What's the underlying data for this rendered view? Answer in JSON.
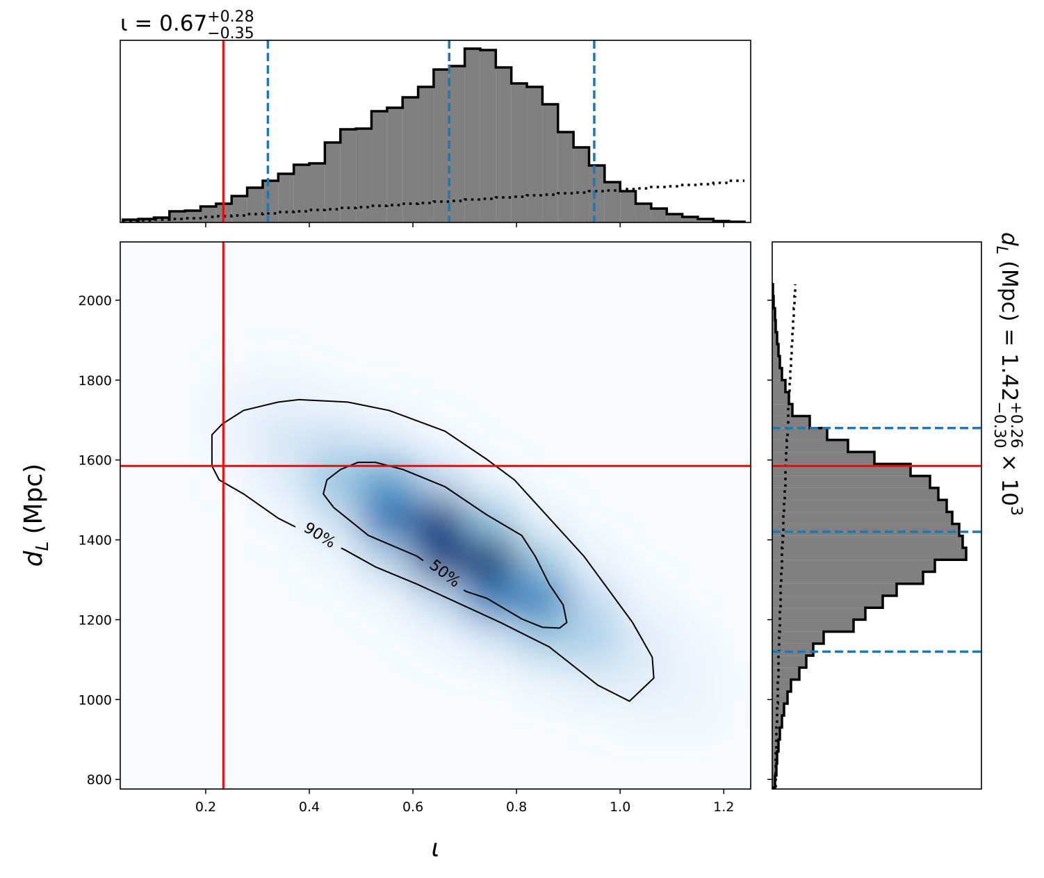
{
  "chart_data": [
    {
      "type": "histogram",
      "orientation": "vertical",
      "title": {
        "main": "ι = 0.67",
        "sup": "+0.28",
        "sub": "−0.35"
      },
      "bins": [
        0.04,
        0.07,
        0.1,
        0.13,
        0.16,
        0.19,
        0.22,
        0.25,
        0.28,
        0.31,
        0.34,
        0.37,
        0.4,
        0.43,
        0.46,
        0.49,
        0.52,
        0.55,
        0.58,
        0.61,
        0.64,
        0.67,
        0.7,
        0.73,
        0.76,
        0.79,
        0.82,
        0.85,
        0.88,
        0.91,
        0.94,
        0.97,
        1,
        1.03,
        1.06,
        1.09,
        1.12,
        1.15,
        1.18,
        1.21,
        1.24
      ],
      "series": [
        {
          "color": "#808080",
          "style": "filled",
          "values": [
            4,
            5,
            7,
            16,
            17,
            23,
            27,
            38,
            50,
            60,
            70,
            83,
            85,
            115,
            134,
            135,
            160,
            165,
            180,
            195,
            220,
            225,
            250,
            248,
            223,
            200,
            195,
            170,
            130,
            108,
            82,
            58,
            45,
            27,
            20,
            12,
            8,
            5,
            2,
            1
          ]
        },
        {
          "color": "#000000",
          "style": "dotted",
          "values": [
            2,
            3,
            4,
            5,
            6,
            8,
            9,
            10,
            12,
            13,
            15,
            16,
            18,
            19,
            21,
            22,
            24,
            25,
            27,
            28,
            30,
            31,
            33,
            34,
            36,
            37,
            39,
            40,
            42,
            43,
            45,
            46,
            48,
            49,
            51,
            52,
            54,
            55,
            57,
            60
          ]
        }
      ],
      "xlim": [
        0.035,
        1.252
      ],
      "ylim": [
        0,
        262
      ],
      "xticks": [
        0.2,
        0.4,
        0.6,
        0.8,
        {
          "value": 1,
          "label": "1.0"
        },
        1.2
      ],
      "injection": {
        "x": 0.234,
        "color": "#ff0000"
      },
      "quantiles": {
        "values": [
          0.32,
          0.67,
          0.95
        ],
        "color": "#1f77b4"
      }
    },
    {
      "type": "heatmap",
      "colormap": "Blues",
      "x": [
        0.25,
        0.35,
        0.45,
        0.55,
        0.65,
        0.75,
        0.85,
        0.95,
        1.05,
        1.15
      ],
      "y": [
        1850,
        1750,
        1650,
        1550,
        1450,
        1350,
        1250,
        1150,
        1050,
        950
      ],
      "z": [
        [
          0.01,
          0.01,
          0,
          0,
          0,
          0,
          0,
          0,
          0,
          0
        ],
        [
          0.04,
          0.06,
          0.03,
          0.01,
          0,
          0,
          0,
          0,
          0,
          0
        ],
        [
          0.04,
          0.15,
          0.19,
          0.11,
          0.02,
          0,
          0,
          0,
          0,
          0
        ],
        [
          0.01,
          0.1,
          0.35,
          0.5,
          0.24,
          0.04,
          0,
          0,
          0,
          0
        ],
        [
          0,
          0.02,
          0.19,
          0.67,
          0.83,
          0.35,
          0.05,
          0,
          0,
          0
        ],
        [
          0,
          0,
          0.03,
          0.26,
          0.81,
          0.87,
          0.33,
          0.05,
          0,
          0
        ],
        [
          0,
          0,
          0,
          0.03,
          0.23,
          0.62,
          0.6,
          0.22,
          0.03,
          0
        ],
        [
          0,
          0,
          0,
          0,
          0.02,
          0.13,
          0.32,
          0.29,
          0.1,
          0.02
        ],
        [
          0,
          0,
          0,
          0,
          0,
          0,
          0.05,
          0.11,
          0.1,
          0.04
        ],
        [
          0,
          0,
          0,
          0,
          0,
          0,
          0,
          0.01,
          0.03,
          0.03
        ]
      ],
      "contours": [
        {
          "label": "90%",
          "x": [
            0.212,
            0.212,
            0.226,
            0.273,
            0.34,
            0.38,
            0.467,
            0.528,
            0.608,
            0.769,
            0.863,
            0.957,
            1.018,
            1.044,
            1.065,
            1.062,
            1.024,
            0.93,
            0.796,
            0.742,
            0.662,
            0.554,
            0.474,
            0.38,
            0.34,
            0.273,
            0.232
          ],
          "y": [
            1663,
            1585,
            1550,
            1515,
            1454,
            1428,
            1376,
            1332,
            1289,
            1193,
            1132,
            1036,
            996,
            1028,
            1054,
            1106,
            1193,
            1359,
            1550,
            1602,
            1672,
            1724,
            1745,
            1751,
            1745,
            1724,
            1690
          ]
        },
        {
          "label": "50%",
          "x": [
            0.427,
            0.434,
            0.46,
            0.494,
            0.528,
            0.581,
            0.662,
            0.742,
            0.81,
            0.836,
            0.863,
            0.89,
            0.897,
            0.883,
            0.85,
            0.81,
            0.742,
            0.702,
            0.608,
            0.514,
            0.447
          ],
          "y": [
            1515,
            1550,
            1576,
            1594,
            1594,
            1576,
            1533,
            1463,
            1411,
            1359,
            1289,
            1237,
            1193,
            1179,
            1181,
            1202,
            1254,
            1271,
            1359,
            1411,
            1481
          ]
        }
      ],
      "xlim": [
        0.035,
        1.252
      ],
      "ylim": [
        776,
        2146
      ],
      "xticks": [
        0.2,
        0.4,
        0.6,
        0.8,
        {
          "value": 1,
          "label": "1.0"
        },
        1.2
      ],
      "yticks": [
        800,
        1000,
        1200,
        1400,
        1600,
        1800,
        2000
      ],
      "xlabel": "ι",
      "ylabel": {
        "symbol": "d",
        "subscript": "L",
        "text": "(Mpc)"
      },
      "injection": {
        "x": 0.234,
        "y": 1585,
        "color": "#ff0000"
      }
    },
    {
      "type": "histogram",
      "orientation": "horizontal",
      "label": {
        "symbol": "d",
        "subscript": "L",
        "text": "(Mpc) = 1.42",
        "sup": "+0.26",
        "sub": "−0.30",
        "tail": "× 10",
        "exp": "3"
      },
      "bins": [
        780,
        810,
        840,
        870,
        900,
        930,
        960,
        990,
        1020,
        1050,
        1080,
        1110,
        1140,
        1170,
        1200,
        1230,
        1260,
        1290,
        1320,
        1350,
        1380,
        1410,
        1440,
        1470,
        1500,
        1530,
        1560,
        1590,
        1620,
        1650,
        1680,
        1710,
        1740,
        1770,
        1800,
        1830,
        1860,
        1890,
        1920,
        1950,
        1980,
        2010,
        2040
      ],
      "series": [
        {
          "color": "#808080",
          "style": "filled",
          "values": [
            4,
            6,
            7,
            9,
            11,
            14,
            17,
            22,
            27,
            39,
            49,
            59,
            74,
            117,
            134,
            159,
            179,
            217,
            234,
            279,
            274,
            269,
            259,
            251,
            239,
            227,
            199,
            147,
            109,
            79,
            54,
            29,
            24,
            19,
            14,
            11,
            9,
            7,
            5,
            4,
            2,
            1
          ]
        },
        {
          "color": "#000000",
          "style": "dotted",
          "values": [
            5,
            5,
            5,
            6,
            6,
            7,
            7,
            8,
            8,
            9,
            9,
            10,
            10,
            11,
            11,
            12,
            12,
            13,
            14,
            14,
            15,
            16,
            16,
            17,
            18,
            19,
            19,
            20,
            21,
            22,
            23,
            23,
            24,
            25,
            26,
            27,
            28,
            29,
            30,
            31,
            32,
            33
          ]
        }
      ],
      "xlim": [
        0,
        301
      ],
      "ylim": [
        776,
        2146
      ],
      "yticks": [
        800,
        1000,
        1200,
        1400,
        1600,
        1800,
        2000
      ],
      "injection": {
        "y": 1585,
        "color": "#ff0000"
      },
      "quantiles": {
        "values": [
          1120,
          1420,
          1680
        ],
        "color": "#1f77b4"
      }
    }
  ]
}
